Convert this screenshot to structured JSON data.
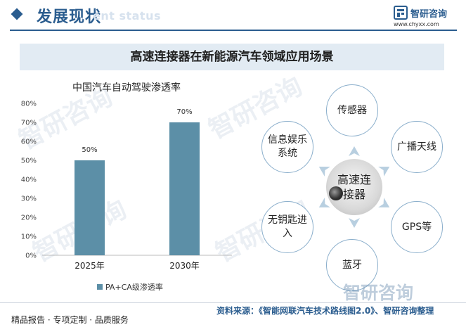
{
  "header": {
    "section_title": "发展现状",
    "ghost_subtitle": "ent status",
    "logo_name": "智研咨询",
    "logo_url": "www.chyxx.com"
  },
  "banner": {
    "title": "高速连接器在新能源汽车领域应用场景"
  },
  "chart_data": {
    "type": "bar",
    "title": "中国汽车自动驾驶渗透率",
    "categories": [
      "2025年",
      "2030年"
    ],
    "series": [
      {
        "name": "PA+CA级渗透率",
        "values": [
          50,
          70
        ],
        "color": "#5c8fa7"
      }
    ],
    "data_labels": [
      "50%",
      "70%"
    ],
    "y_ticks": [
      "0%",
      "10%",
      "20%",
      "30%",
      "40%",
      "50%",
      "60%",
      "70%",
      "80%"
    ],
    "ylim": [
      0,
      80
    ],
    "grid": false,
    "legend_position": "bottom"
  },
  "diagram": {
    "center": "高速连接器",
    "nodes": {
      "top": "传感器",
      "top_right": "广播天线",
      "bottom_right": "GPS等",
      "bottom": "蓝牙",
      "bottom_left": "无钥匙进入",
      "top_left": "信息娱乐系统"
    },
    "arrow_color": "#b8cfe0"
  },
  "watermark": {
    "text": "智研咨询"
  },
  "footer": {
    "left": "精品报告 · 专项定制 · 品质服务",
    "source": "资料来源：《智能网联汽车技术路线图2.0》、智研咨询整理"
  }
}
